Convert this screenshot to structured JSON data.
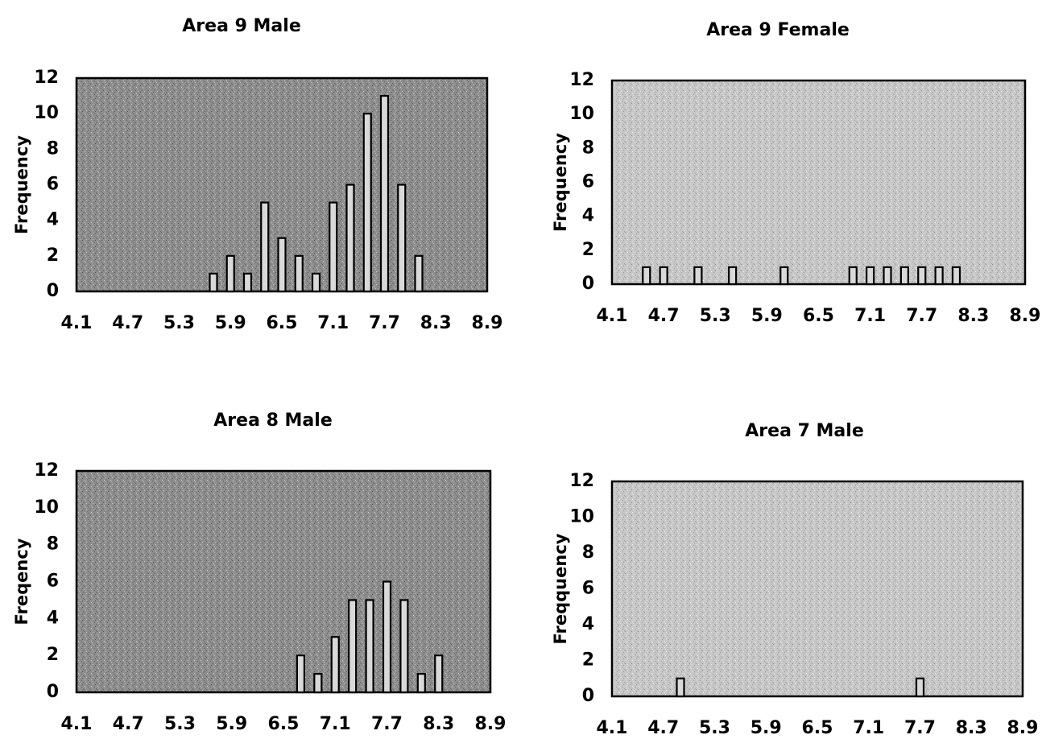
{
  "chart_data": [
    {
      "type": "bar",
      "title": "Area 9 Male",
      "ylabel": "Frequency",
      "xlabel": "",
      "ylim": [
        0,
        12
      ],
      "yticks": [
        0,
        2,
        4,
        6,
        8,
        10,
        12
      ],
      "xlim": [
        4.1,
        8.9
      ],
      "xticks": [
        "4.1",
        "4.7",
        "5.3",
        "5.9",
        "6.5",
        "7.1",
        "7.7",
        "8.3",
        "8.9"
      ],
      "x": [
        5.7,
        5.9,
        6.1,
        6.3,
        6.5,
        6.7,
        6.9,
        7.1,
        7.3,
        7.5,
        7.7,
        7.9,
        8.1
      ],
      "values": [
        1,
        2,
        1,
        5,
        3,
        2,
        1,
        5,
        6,
        10,
        11,
        6,
        2
      ],
      "grid": false
    },
    {
      "type": "bar",
      "title": "Area 9 Female",
      "ylabel": "Frequency",
      "xlabel": "",
      "ylim": [
        0,
        12
      ],
      "yticks": [
        0,
        2,
        4,
        6,
        8,
        10,
        12
      ],
      "xlim": [
        4.1,
        8.9
      ],
      "xticks": [
        "4.1",
        "4.7",
        "5.3",
        "5.9",
        "6.5",
        "7.1",
        "7.7",
        "8.3",
        "8.9"
      ],
      "x": [
        4.5,
        4.7,
        5.1,
        5.5,
        6.1,
        6.9,
        7.1,
        7.3,
        7.5,
        7.7,
        7.9,
        8.1
      ],
      "values": [
        1,
        1,
        1,
        1,
        1,
        1,
        1,
        1,
        1,
        1,
        1,
        1
      ],
      "grid": false
    },
    {
      "type": "bar",
      "title": "Area 8 Male",
      "ylabel": "Freqency",
      "xlabel": "",
      "ylim": [
        0,
        12
      ],
      "yticks": [
        0,
        2,
        4,
        6,
        8,
        10,
        12
      ],
      "xlim": [
        4.1,
        8.9
      ],
      "xticks": [
        "4.1",
        "4.7",
        "5.3",
        "5.9",
        "6.5",
        "7.1",
        "7.7",
        "8.3",
        "8.9"
      ],
      "x": [
        6.7,
        6.9,
        7.1,
        7.3,
        7.5,
        7.7,
        7.9,
        8.1,
        8.3
      ],
      "values": [
        2,
        1,
        3,
        5,
        5,
        6,
        5,
        1,
        2
      ],
      "grid": false
    },
    {
      "type": "bar",
      "title": "Area 7 Male",
      "ylabel": "Freqquency",
      "xlabel": "",
      "ylim": [
        0,
        12
      ],
      "yticks": [
        0,
        2,
        4,
        6,
        8,
        10,
        12
      ],
      "xlim": [
        4.1,
        8.9
      ],
      "xticks": [
        "4.1",
        "4.7",
        "5.3",
        "5.9",
        "6.5",
        "7.1",
        "7.7",
        "8.3",
        "8.9"
      ],
      "x": [
        4.9,
        7.7
      ],
      "values": [
        1,
        1
      ],
      "grid": false
    }
  ]
}
